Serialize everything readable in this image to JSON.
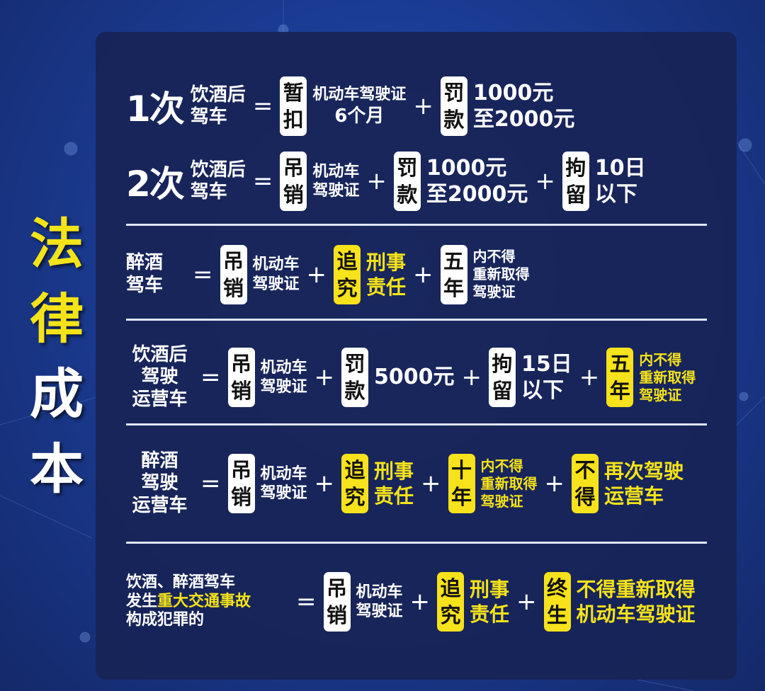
{
  "title": {
    "chars": [
      "法",
      "律",
      "成",
      "本"
    ],
    "colors": [
      "#f5e31a",
      "#f5e31a",
      "#ffffff",
      "#ffffff"
    ]
  },
  "colors": {
    "badge_yellow": "#f7e21b",
    "text_yellow": "#f5e31a",
    "panel": "#182456"
  },
  "rows": [
    {
      "big": "1次",
      "label": [
        "饮酒后",
        "驾车"
      ],
      "items": [
        {
          "badge": [
            "暂",
            "扣"
          ],
          "badge_color": "white",
          "text": [
            "机动车驾驶证",
            "6个月"
          ],
          "text_color": "white"
        },
        {
          "badge": [
            "罚",
            "款"
          ],
          "badge_color": "white",
          "text": [
            "1000元",
            "至2000元"
          ],
          "text_color": "white"
        }
      ]
    },
    {
      "big": "2次",
      "label": [
        "饮酒后",
        "驾车"
      ],
      "items": [
        {
          "badge": [
            "吊",
            "销"
          ],
          "badge_color": "white",
          "text": [
            "机动车",
            "驾驶证"
          ],
          "text_color": "white"
        },
        {
          "badge": [
            "罚",
            "款"
          ],
          "badge_color": "white",
          "text": [
            "1000元",
            "至2000元"
          ],
          "text_color": "white"
        },
        {
          "badge": [
            "拘",
            "留"
          ],
          "badge_color": "white",
          "text": [
            "10日",
            "以下"
          ],
          "text_color": "white"
        }
      ]
    },
    {
      "big": "",
      "label": [
        "醉酒",
        "驾车"
      ],
      "items": [
        {
          "badge": [
            "吊",
            "销"
          ],
          "badge_color": "white",
          "text": [
            "机动车",
            "驾驶证"
          ],
          "text_color": "white"
        },
        {
          "badge": [
            "追",
            "究"
          ],
          "badge_color": "yellow",
          "text": [
            "刑事",
            "责任"
          ],
          "text_color": "yellow"
        },
        {
          "badge": [
            "五",
            "年"
          ],
          "badge_color": "white",
          "text": [
            "内不得",
            "重新取得",
            "驾驶证"
          ],
          "text_color": "white"
        }
      ]
    },
    {
      "big": "",
      "label": [
        "饮酒后",
        "驾驶",
        "运营车"
      ],
      "items": [
        {
          "badge": [
            "吊",
            "销"
          ],
          "badge_color": "white",
          "text": [
            "机动车",
            "驾驶证"
          ],
          "text_color": "white"
        },
        {
          "badge": [
            "罚",
            "款"
          ],
          "badge_color": "white",
          "text": [
            "5000元"
          ],
          "text_color": "white"
        },
        {
          "badge": [
            "拘",
            "留"
          ],
          "badge_color": "white",
          "text": [
            "15日",
            "以下"
          ],
          "text_color": "white"
        },
        {
          "badge": [
            "五",
            "年"
          ],
          "badge_color": "yellow",
          "text": [
            "内不得",
            "重新取得",
            "驾驶证"
          ],
          "text_color": "yellow"
        }
      ]
    },
    {
      "big": "",
      "label": [
        "醉酒",
        "驾驶",
        "运营车"
      ],
      "items": [
        {
          "badge": [
            "吊",
            "销"
          ],
          "badge_color": "white",
          "text": [
            "机动车",
            "驾驶证"
          ],
          "text_color": "white"
        },
        {
          "badge": [
            "追",
            "究"
          ],
          "badge_color": "yellow",
          "text": [
            "刑事",
            "责任"
          ],
          "text_color": "yellow"
        },
        {
          "badge": [
            "十",
            "年"
          ],
          "badge_color": "yellow",
          "text": [
            "内不得",
            "重新取得",
            "驾驶证"
          ],
          "text_color": "yellow"
        },
        {
          "badge": [
            "不",
            "得"
          ],
          "badge_color": "yellow",
          "text": [
            "再次驾驶",
            "运营车"
          ],
          "text_color": "yellow"
        }
      ]
    },
    {
      "big": "",
      "label": [
        "饮酒、醉酒驾车",
        "发生",
        "重大交通事故",
        "构成犯罪的"
      ],
      "items": [
        {
          "badge": [
            "吊",
            "销"
          ],
          "badge_color": "white",
          "text": [
            "机动车",
            "驾驶证"
          ],
          "text_color": "white"
        },
        {
          "badge": [
            "追",
            "究"
          ],
          "badge_color": "yellow",
          "text": [
            "刑事",
            "责任"
          ],
          "text_color": "yellow"
        },
        {
          "badge": [
            "终",
            "生"
          ],
          "badge_color": "yellow",
          "text": [
            "不得重新取得",
            "机动车驾驶证"
          ],
          "text_color": "yellow"
        }
      ]
    }
  ],
  "operators": {
    "equals": "=",
    "plus": "+"
  }
}
